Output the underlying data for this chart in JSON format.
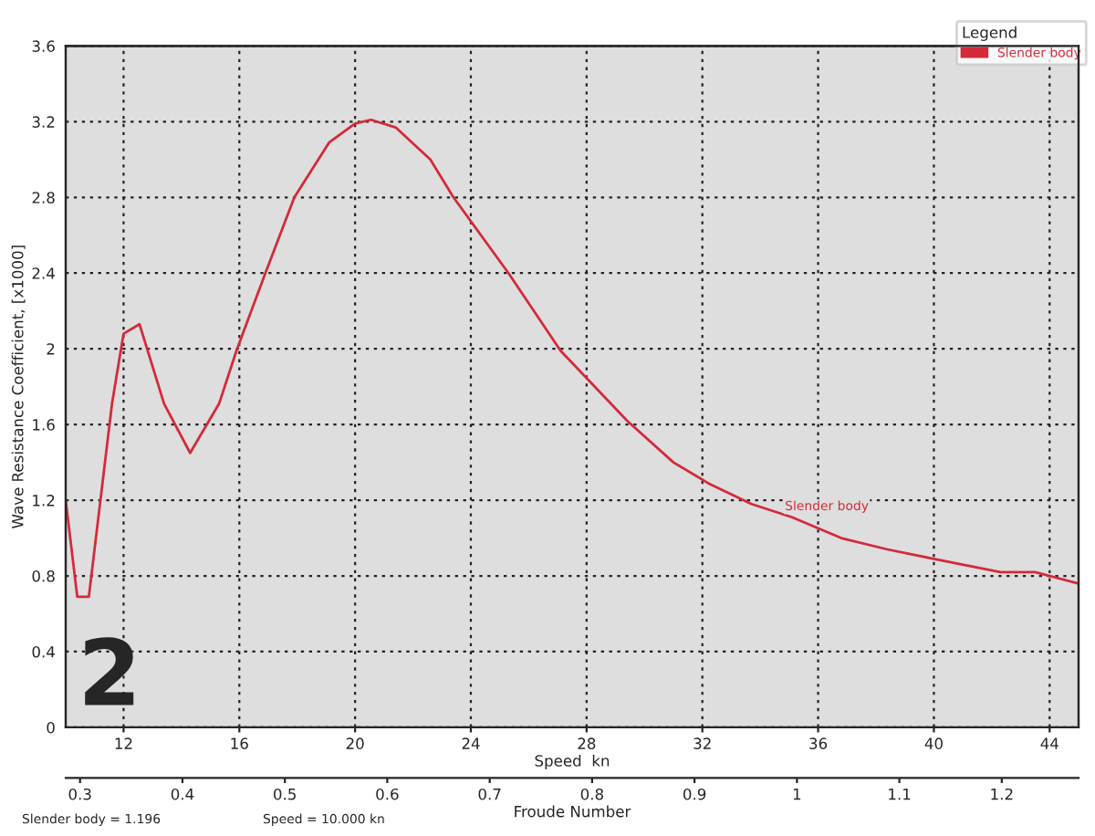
{
  "chart_data": {
    "type": "line",
    "xlabel": "Speed  kn",
    "ylabel": "Wave Resistance Coefficient, [x1000]",
    "x2label": "Froude Number",
    "legend_title": "Legend",
    "series": [
      {
        "name": "Slender body",
        "color": "#d42a3a",
        "x": [
          10.0,
          10.4,
          10.8,
          11.6,
          12.0,
          12.55,
          13.4,
          14.3,
          15.3,
          15.9,
          16.9,
          17.9,
          19.1,
          20.0,
          20.55,
          21.4,
          22.6,
          23.4,
          25.3,
          27.1,
          29.4,
          31.0,
          32.2,
          33.7,
          35.1,
          36.8,
          38.4,
          40.0,
          42.3,
          43.5,
          45.0
        ],
        "values": [
          1.2,
          0.69,
          0.69,
          1.71,
          2.08,
          2.13,
          1.71,
          1.45,
          1.71,
          1.99,
          2.4,
          2.8,
          3.09,
          3.19,
          3.21,
          3.17,
          3.0,
          2.8,
          2.4,
          1.99,
          1.62,
          1.4,
          1.29,
          1.18,
          1.11,
          1.0,
          0.94,
          0.89,
          0.82,
          0.82,
          0.76
        ]
      }
    ],
    "xlim": [
      10,
      45
    ],
    "xticks": [
      12,
      16,
      20,
      24,
      28,
      32,
      36,
      40,
      44
    ],
    "ylim": [
      0,
      3.6
    ],
    "yticks": [
      0,
      0.4,
      0.8,
      1.2,
      1.6,
      2,
      2.4,
      2.8,
      3.2,
      3.6
    ],
    "x2lim": [
      0.286,
      1.275
    ],
    "x2ticks": [
      0.3,
      0.4,
      0.5,
      0.6,
      0.7,
      0.8,
      0.9,
      1,
      1.1,
      1.2
    ],
    "annotations": [
      {
        "text": "Slender body",
        "x": 36.3,
        "y": 1.08
      },
      "2",
      "Slender body = 1.196",
      "Speed = 10.000 kn"
    ],
    "grid": true,
    "legend": "top right",
    "line_style": "solid",
    "marker": "none"
  }
}
